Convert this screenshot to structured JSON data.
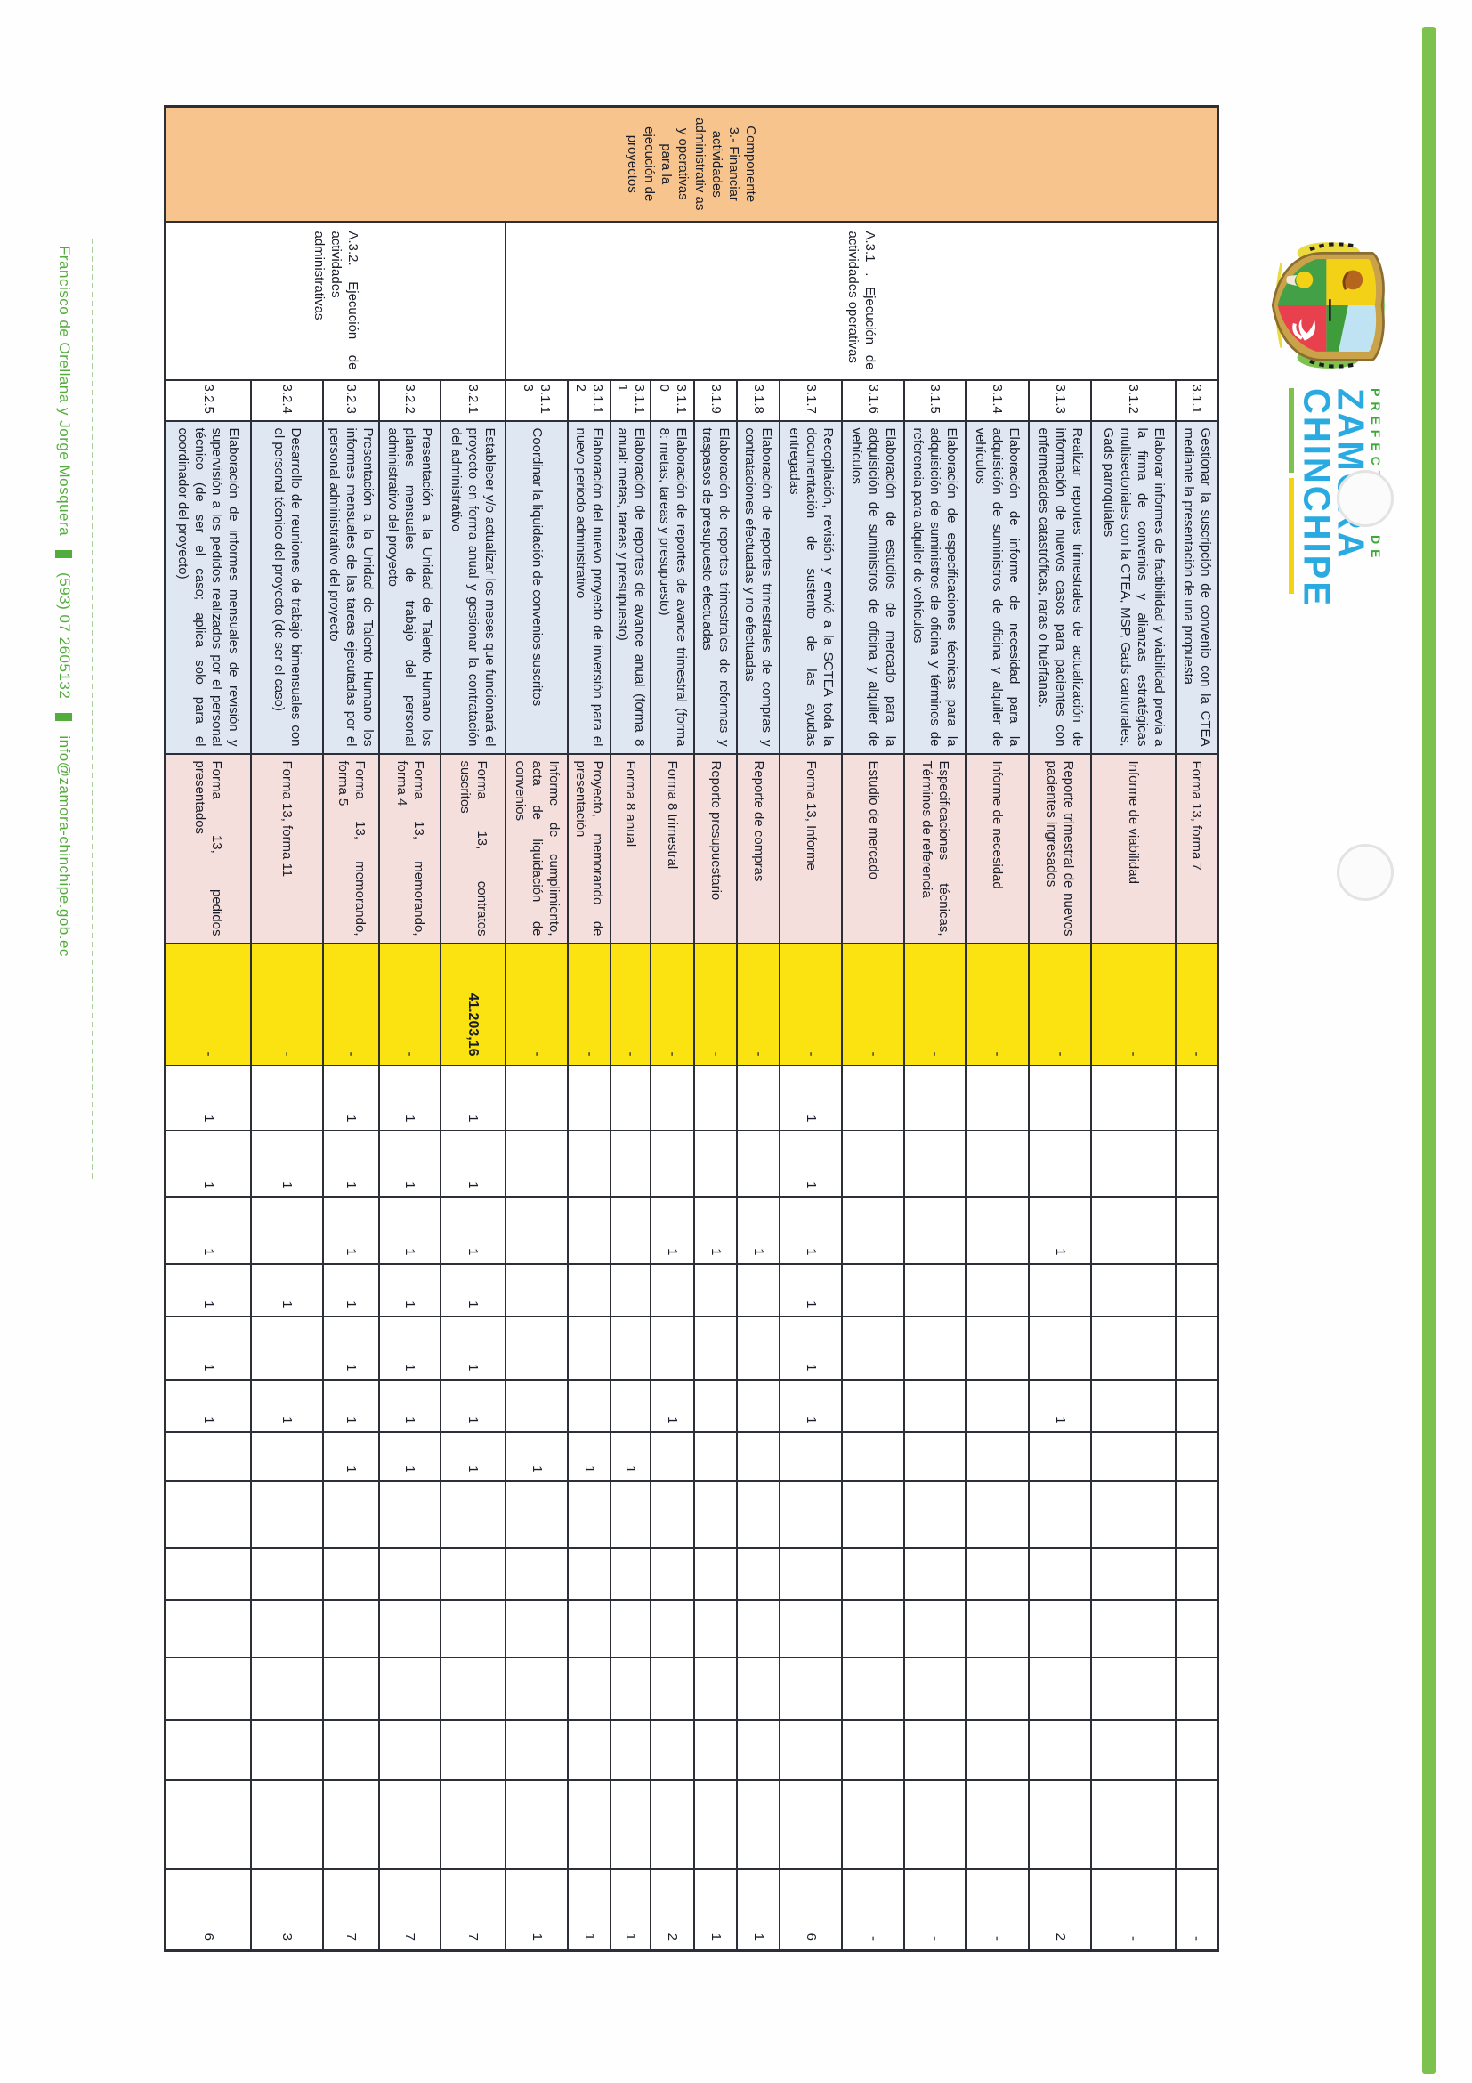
{
  "logo": {
    "prefix": "PREFECTURA DE",
    "name_line1": "ZAMORA",
    "name_line2": "CHINCHIPE",
    "crest_icon": "provincial-coat-of-arms"
  },
  "footer": {
    "address": "Francisco de Orellana y Jorge Mosquera",
    "phone": "(593) 07 2605132",
    "email": "info@zamora-chinchipe.gob.ec"
  },
  "colors": {
    "component_fill": "#f7c48d",
    "description_fill": "#dfe7f3",
    "deliverable_fill": "#f4dfdc",
    "budget_fill": "#fbe311",
    "brand_green": "#7dc24f",
    "brand_blue": "#29abe2"
  },
  "table": {
    "componente": "Componente 3.- Financiar actividades administrativ as y operativas para la ejecución de proyectos",
    "groups": [
      {
        "label": "A.3.1 . Ejecución de actividades operativas",
        "rowspan": 13
      },
      {
        "label": "A.3.2. Ejecución de actividades administrativas",
        "rowspan": 5
      }
    ],
    "period_column_count": 13,
    "rows": [
      {
        "code": "3.1.1",
        "desc": "Gestionar la suscripción de convenio con la CTEA mediante la presentación de una propuesta",
        "deliverable": "Forma 13, forma 7",
        "budget": "-",
        "periods": [
          "",
          "",
          "",
          "",
          "",
          "",
          "",
          "",
          "",
          "",
          "",
          "",
          ""
        ],
        "total": "-"
      },
      {
        "code": "3.1.2",
        "desc": "Elaborar informes de factibilidad y viabilidad previa a la firma de convenios y alianzas estratégicas multisectoriales con la CTEA, MSP, Gads cantonales, Gads parroquiales",
        "deliverable": "Informe de viabilidad",
        "budget": "-",
        "periods": [
          "",
          "",
          "",
          "",
          "",
          "",
          "",
          "",
          "",
          "",
          "",
          "",
          ""
        ],
        "total": "-"
      },
      {
        "code": "3.1.3",
        "desc": "Realizar reportes trimestrales de actualización de información de nuevos casos para pacientes con enfermedades catastróficas, raras o huérfanas.",
        "deliverable": "Reporte trimestral de nuevos pacientes ingresados",
        "budget": "-",
        "periods": [
          "",
          "",
          "1",
          "",
          "",
          "1",
          "",
          "",
          "",
          "",
          "",
          "",
          ""
        ],
        "total": "2"
      },
      {
        "code": "3.1.4",
        "desc": "Elaboración de informe de necesidad para la adquisición de suministros de oficina y alquiler de vehículos",
        "deliverable": "Informe de necesidad",
        "budget": "-",
        "periods": [
          "",
          "",
          "",
          "",
          "",
          "",
          "",
          "",
          "",
          "",
          "",
          "",
          ""
        ],
        "total": "-"
      },
      {
        "code": "3.1.5",
        "desc": "Elaboración de especificaciones técnicas para la adquisición de suministros de oficina y términos de referencia para alquiler de vehículos",
        "deliverable": "Especificaciones técnicas, Términos de referencia",
        "budget": "-",
        "periods": [
          "",
          "",
          "",
          "",
          "",
          "",
          "",
          "",
          "",
          "",
          "",
          "",
          ""
        ],
        "total": "-"
      },
      {
        "code": "3.1.6",
        "desc": "Elaboración de estudios de mercado para la adquisición de suministros de oficina y alquiler de vehículos",
        "deliverable": "Estudio de mercado",
        "budget": "-",
        "periods": [
          "",
          "",
          "",
          "",
          "",
          "",
          "",
          "",
          "",
          "",
          "",
          "",
          ""
        ],
        "total": "-"
      },
      {
        "code": "3.1.7",
        "desc": "Recopilación, revisión y envió a la SCTEA toda la documentación de sustento de las ayudas entregadas",
        "deliverable": "Forma 13, Informe",
        "budget": "-",
        "periods": [
          "1",
          "1",
          "1",
          "1",
          "1",
          "1",
          "",
          "",
          "",
          "",
          "",
          "",
          ""
        ],
        "total": "6"
      },
      {
        "code": "3.1.8",
        "desc": "Elaboración de reportes trimestrales de compras y contrataciones efectuadas y no efectuadas",
        "deliverable": "Reporte de compras",
        "budget": "-",
        "periods": [
          "",
          "",
          "1",
          "",
          "",
          "",
          "",
          "",
          "",
          "",
          "",
          "",
          ""
        ],
        "total": "1"
      },
      {
        "code": "3.1.9",
        "desc": "Elaboración de reportes trimestrales de reformas y traspasos de presupuesto efectuadas",
        "deliverable": "Reporte presupuestario",
        "budget": "-",
        "periods": [
          "",
          "",
          "1",
          "",
          "",
          "",
          "",
          "",
          "",
          "",
          "",
          "",
          ""
        ],
        "total": "1"
      },
      {
        "code": "3.1.10",
        "desc": "Elaboración de reportes de avance trimestral (forma 8: metas, tareas y presupuesto)",
        "deliverable": "Forma 8 trimestral",
        "budget": "-",
        "periods": [
          "",
          "",
          "1",
          "",
          "",
          "1",
          "",
          "",
          "",
          "",
          "",
          "",
          ""
        ],
        "total": "2"
      },
      {
        "code": "3.1.11",
        "desc": "Elaboración de reportes de avance anual (forma 8 anual: metas, tareas y presupuesto)",
        "deliverable": "Forma 8 anual",
        "budget": "-",
        "periods": [
          "",
          "",
          "",
          "",
          "",
          "",
          "1",
          "",
          "",
          "",
          "",
          "",
          ""
        ],
        "total": "1"
      },
      {
        "code": "3.1.12",
        "desc": "Elaboración del nuevo proyecto de inversión para el nuevo periodo administrativo",
        "deliverable": "Proyecto, memorando de presentación",
        "budget": "-",
        "periods": [
          "",
          "",
          "",
          "",
          "",
          "",
          "1",
          "",
          "",
          "",
          "",
          "",
          ""
        ],
        "total": "1"
      },
      {
        "code": "3.1.13",
        "desc": "Coordinar la liquidación de convenios suscritos",
        "deliverable": "Informe de cumplimiento, acta de liquidación de convenios",
        "budget": "-",
        "periods": [
          "",
          "",
          "",
          "",
          "",
          "",
          "1",
          "",
          "",
          "",
          "",
          "",
          ""
        ],
        "total": "1"
      },
      {
        "code": "3.2.1",
        "desc": "Establecer y/o actualizar los meses que funcionará el proyecto en forma anual y gestionar la contratación del administrativo",
        "deliverable": "Forma 13, contratos suscritos",
        "budget": "41.203,16",
        "periods": [
          "1",
          "1",
          "1",
          "1",
          "1",
          "1",
          "1",
          "",
          "",
          "",
          "",
          "",
          ""
        ],
        "total": "7"
      },
      {
        "code": "3.2.2",
        "desc": "Presentación a la Unidad de Talento Humano los planes mensuales de trabajo del personal administrativo del proyecto",
        "deliverable": "Forma 13, memorando, forma 4",
        "budget": "-",
        "periods": [
          "1",
          "1",
          "1",
          "1",
          "1",
          "1",
          "1",
          "",
          "",
          "",
          "",
          "",
          ""
        ],
        "total": "7"
      },
      {
        "code": "3.2.3",
        "desc": "Presentación a la Unidad de Talento Humano los informes mensuales de las tareas ejecutadas por el personal administrativo del proyecto",
        "deliverable": "Forma 13, memorando, forma 5",
        "budget": "-",
        "periods": [
          "1",
          "1",
          "1",
          "1",
          "1",
          "1",
          "1",
          "",
          "",
          "",
          "",
          "",
          ""
        ],
        "total": "7"
      },
      {
        "code": "3.2.4",
        "desc": "Desarrollo de reuniones de trabajo bimensuales con el personal técnico del proyecto (de ser el caso)",
        "deliverable": "Forma 13, forma 11",
        "budget": "-",
        "periods": [
          "",
          "1",
          "",
          "1",
          "",
          "1",
          "",
          "",
          "",
          "",
          "",
          "",
          ""
        ],
        "total": "3"
      },
      {
        "code": "3.2.5",
        "desc": "Elaboración de informes mensuales de revisión y supervisión a los pedidos realizados por el personal técnico (de ser el caso; aplica solo para el coordinador del proyecto)",
        "deliverable": "Forma 13, pedidos presentados",
        "budget": "-",
        "periods": [
          "1",
          "1",
          "1",
          "1",
          "1",
          "1",
          "",
          "",
          "",
          "",
          "",
          "",
          ""
        ],
        "total": "6"
      }
    ]
  }
}
